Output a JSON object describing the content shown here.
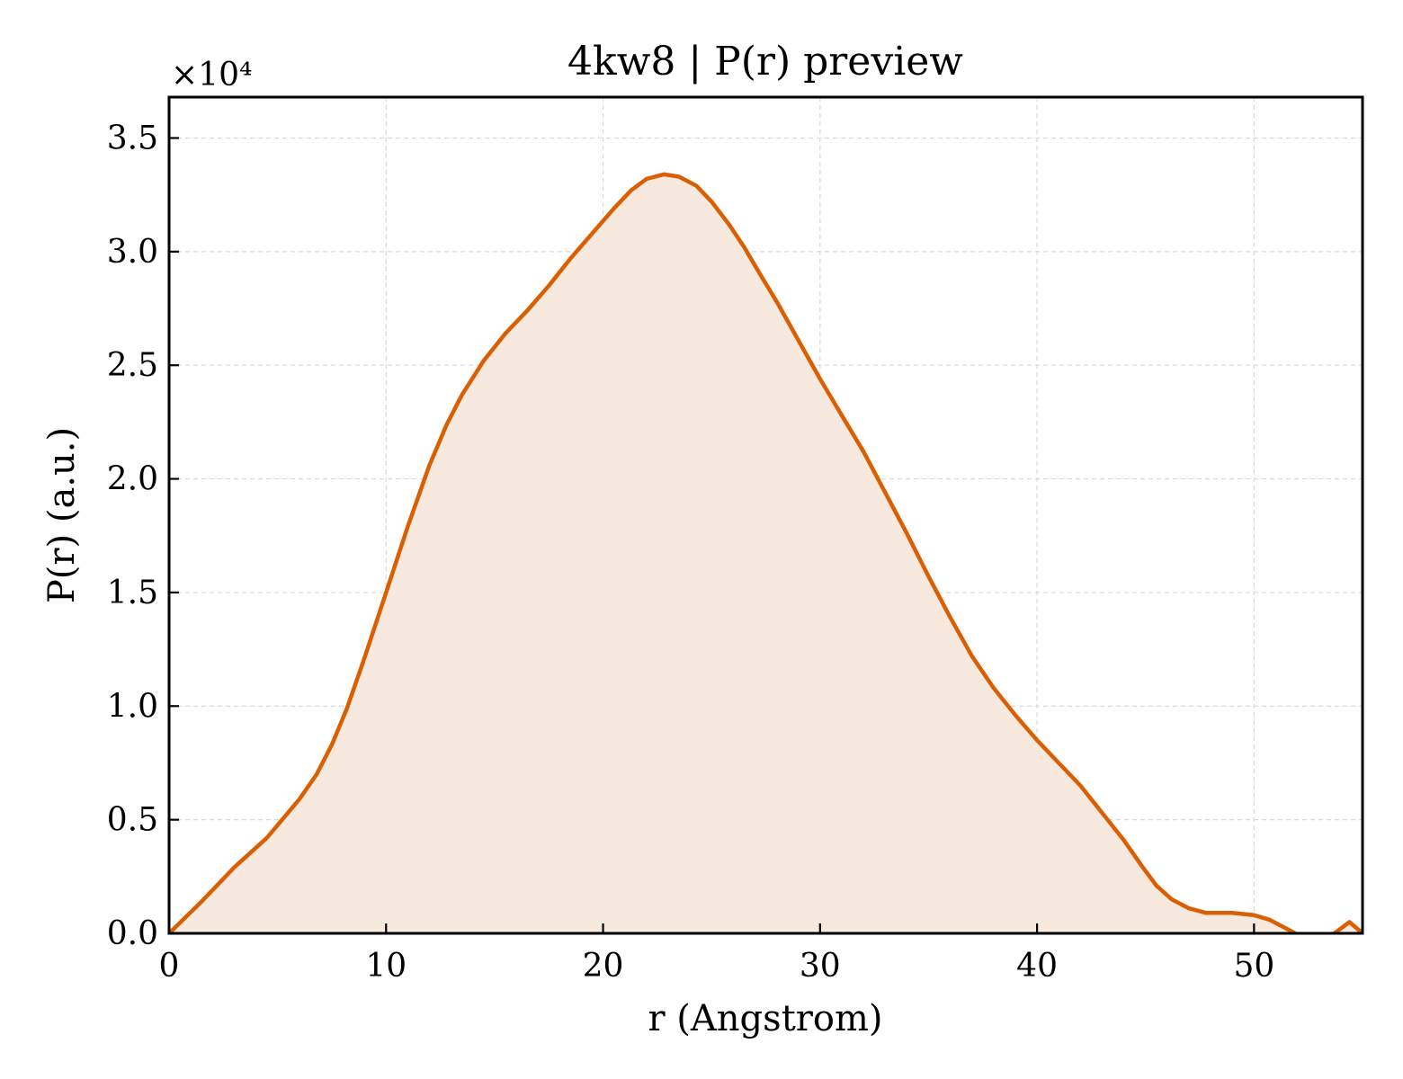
{
  "chart_data": {
    "type": "area",
    "title": "4kw8 | P(r) preview",
    "xlabel": "r (Angstrom)",
    "ylabel": "P(r) (a.u.)",
    "y_multiplier_label": "×10⁴",
    "xlim": [
      0,
      55
    ],
    "ylim": [
      0,
      3.68
    ],
    "y_scale_factor": 10000,
    "x_ticks": [
      0,
      10,
      20,
      30,
      40,
      50
    ],
    "x_tick_labels": [
      "0",
      "10",
      "20",
      "30",
      "40",
      "50"
    ],
    "y_ticks": [
      0,
      0.5,
      1.0,
      1.5,
      2.0,
      2.5,
      3.0,
      3.5
    ],
    "y_tick_labels": [
      "0.0",
      "0.5",
      "1.0",
      "1.5",
      "2.0",
      "2.5",
      "3.0",
      "3.5"
    ],
    "grid": true,
    "line_color": "#d95f02",
    "fill_color": "#f8e9df",
    "series": [
      {
        "x": [
          0,
          1.5,
          3,
          4.5,
          5.3,
          6,
          6.8,
          7.5,
          8.2,
          9,
          10,
          11,
          12,
          12.8,
          13.5,
          14.5,
          15.5,
          16.5,
          17.5,
          18.5,
          19.5,
          20.5,
          21.3,
          22,
          22.8,
          23.5,
          24.3,
          25,
          25.8,
          26.5,
          27.3,
          28,
          29,
          30,
          31,
          32,
          33,
          34,
          35,
          36,
          37,
          38,
          39,
          40,
          41,
          42,
          43,
          44,
          44.8,
          45.5,
          46.2,
          47,
          47.8,
          49,
          50,
          50.7,
          51.5,
          52.5,
          53.7,
          54.4,
          55
        ],
        "y": [
          0,
          0.14,
          0.29,
          0.42,
          0.51,
          0.59,
          0.7,
          0.83,
          0.99,
          1.21,
          1.5,
          1.79,
          2.06,
          2.24,
          2.37,
          2.52,
          2.64,
          2.74,
          2.85,
          2.97,
          3.08,
          3.19,
          3.27,
          3.32,
          3.34,
          3.33,
          3.29,
          3.22,
          3.12,
          3.02,
          2.89,
          2.78,
          2.61,
          2.44,
          2.28,
          2.12,
          1.94,
          1.76,
          1.57,
          1.39,
          1.22,
          1.08,
          0.96,
          0.85,
          0.75,
          0.65,
          0.53,
          0.41,
          0.3,
          0.21,
          0.15,
          0.11,
          0.09,
          0.09,
          0.08,
          0.06,
          0.02,
          -0.03,
          0,
          0.05,
          0
        ]
      }
    ]
  }
}
